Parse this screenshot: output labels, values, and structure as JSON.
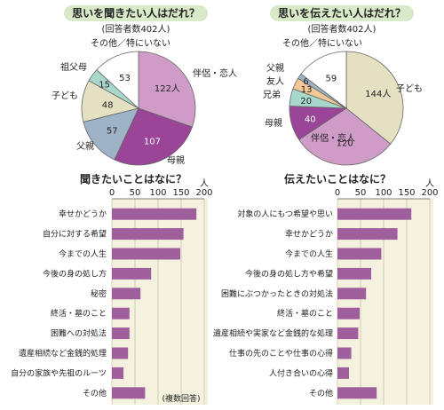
{
  "colors": {
    "pink": "#cf9cc8",
    "purple": "#9a4598",
    "blue": "#9fb3c6",
    "khaki": "#e4e0c2",
    "teal": "#a8d8cc",
    "orange": "#f4c896",
    "white": "#ffffff",
    "title_bg": "#d8eac8",
    "bar": "#9f5f9c",
    "panel": "#f4f2de"
  },
  "note": "(複数回答)",
  "chart_data": [
    {
      "type": "pie",
      "title": "思いを聞きたい人はだれ？",
      "subtitle": "(回答者数402人)",
      "slices": [
        {
          "label": "伴侶・恋人",
          "value": 122,
          "value_text": "122人",
          "color": "#cf9cc8"
        },
        {
          "label": "母親",
          "value": 107,
          "value_text": "107",
          "color": "#9a4598"
        },
        {
          "label": "父親",
          "value": 57,
          "value_text": "57",
          "color": "#9fb3c6"
        },
        {
          "label": "子ども",
          "value": 48,
          "value_text": "48",
          "color": "#e4e0c2"
        },
        {
          "label": "祖父母",
          "value": 15,
          "value_text": "15",
          "color": "#a8d8cc"
        },
        {
          "label": "その他／特にいない",
          "value": 53,
          "value_text": "53",
          "color": "#ffffff"
        }
      ]
    },
    {
      "type": "pie",
      "title": "思いを伝えたい人はだれ？",
      "subtitle": "(回答者数402人)",
      "slices": [
        {
          "label": "子ども",
          "value": 144,
          "value_text": "144人",
          "color": "#e4e0c2"
        },
        {
          "label": "伴侶・恋人",
          "value": 120,
          "value_text": "120",
          "color": "#cf9cc8"
        },
        {
          "label": "母親",
          "value": 40,
          "value_text": "40",
          "color": "#9a4598"
        },
        {
          "label": "兄弟",
          "value": 20,
          "value_text": "20",
          "color": "#a8d8cc"
        },
        {
          "label": "友人",
          "value": 13,
          "value_text": "13",
          "color": "#f4c896"
        },
        {
          "label": "父親",
          "value": 6,
          "value_text": "6",
          "color": "#9fb3c6"
        },
        {
          "label": "その他／特にいない",
          "value": 59,
          "value_text": "59",
          "color": "#ffffff"
        }
      ]
    },
    {
      "type": "bar",
      "orientation": "horizontal",
      "title": "聞きたいことはなに？",
      "unit": "人",
      "xlim": [
        0,
        200
      ],
      "ticks": [
        0,
        50,
        100,
        150,
        200
      ],
      "categories": [
        "幸せかどうか",
        "自分に対する希望",
        "今までの人生",
        "今後の身の処し方",
        "秘密",
        "終活・墓のこと",
        "困難への対処法",
        "遺産相続など金銭的処理",
        "自分の家族や先祖のルーツ",
        "その他"
      ],
      "values": [
        183,
        155,
        148,
        85,
        62,
        38,
        38,
        35,
        25,
        72
      ]
    },
    {
      "type": "bar",
      "orientation": "horizontal",
      "title": "伝えたいことはなに？",
      "unit": "人",
      "xlim": [
        0,
        200
      ],
      "ticks": [
        0,
        50,
        100,
        150,
        200
      ],
      "categories": [
        "対象の人にもつ希望や思い",
        "幸せかどうか",
        "今までの人生",
        "今後の身の処し方や希望",
        "困難にぶつかったときの対処法",
        "終活・墓のこと",
        "遺産相続や実家など金銭的な処理",
        "仕事の先のことや仕事の心得",
        "人付き合いの心得",
        "その他"
      ],
      "values": [
        160,
        130,
        95,
        73,
        62,
        48,
        45,
        30,
        25,
        85
      ]
    }
  ]
}
